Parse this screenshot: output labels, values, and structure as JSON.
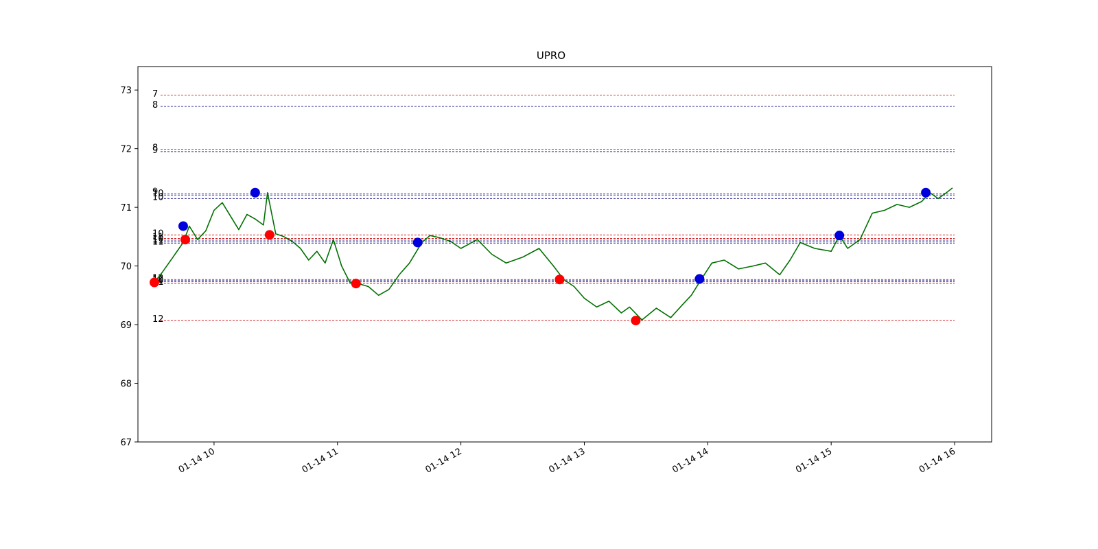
{
  "chart_data": {
    "type": "line",
    "title": "UPRO",
    "xlabel": "",
    "ylabel": "",
    "ylim": [
      67,
      73.4
    ],
    "xlim": [
      "2020-01-14 09:23",
      "2020-01-14 16:18"
    ],
    "grid": false,
    "y_ticks": [
      67,
      68,
      69,
      70,
      71,
      72,
      73
    ],
    "x_ticks": [
      "2020-01-14 10:00",
      "2020-01-14 11:00",
      "2020-01-14 12:00",
      "2020-01-14 13:00",
      "2020-01-14 14:00",
      "2020-01-14 15:00",
      "2020-01-14 16:00"
    ],
    "x_tick_labels": [
      "01-14 10",
      "01-14 11",
      "01-14 12",
      "01-14 13",
      "01-14 14",
      "01-14 15",
      "01-14 16"
    ],
    "series": [
      {
        "color": "#007000",
        "x": [
          "2020-01-14 09:31",
          "2020-01-14 09:35",
          "2020-01-14 09:40",
          "2020-01-14 09:45",
          "2020-01-14 09:48",
          "2020-01-14 09:52",
          "2020-01-14 09:56",
          "2020-01-14 10:00",
          "2020-01-14 10:04",
          "2020-01-14 10:08",
          "2020-01-14 10:12",
          "2020-01-14 10:16",
          "2020-01-14 10:20",
          "2020-01-14 10:24",
          "2020-01-14 10:26",
          "2020-01-14 10:30",
          "2020-01-14 10:34",
          "2020-01-14 10:38",
          "2020-01-14 10:42",
          "2020-01-14 10:46",
          "2020-01-14 10:50",
          "2020-01-14 10:54",
          "2020-01-14 10:58",
          "2020-01-14 11:02",
          "2020-01-14 11:06",
          "2020-01-14 11:10",
          "2020-01-14 11:15",
          "2020-01-14 11:20",
          "2020-01-14 11:25",
          "2020-01-14 11:30",
          "2020-01-14 11:35",
          "2020-01-14 11:41",
          "2020-01-14 11:45",
          "2020-01-14 11:50",
          "2020-01-14 11:55",
          "2020-01-14 12:00",
          "2020-01-14 12:08",
          "2020-01-14 12:15",
          "2020-01-14 12:22",
          "2020-01-14 12:30",
          "2020-01-14 12:38",
          "2020-01-14 12:45",
          "2020-01-14 12:50",
          "2020-01-14 12:55",
          "2020-01-14 13:00",
          "2020-01-14 13:06",
          "2020-01-14 13:12",
          "2020-01-14 13:18",
          "2020-01-14 13:22",
          "2020-01-14 13:28",
          "2020-01-14 13:35",
          "2020-01-14 13:42",
          "2020-01-14 13:48",
          "2020-01-14 13:52",
          "2020-01-14 13:57",
          "2020-01-14 14:02",
          "2020-01-14 14:08",
          "2020-01-14 14:15",
          "2020-01-14 14:22",
          "2020-01-14 14:28",
          "2020-01-14 14:35",
          "2020-01-14 14:40",
          "2020-01-14 14:45",
          "2020-01-14 14:52",
          "2020-01-14 15:00",
          "2020-01-14 15:04",
          "2020-01-14 15:08",
          "2020-01-14 15:14",
          "2020-01-14 15:20",
          "2020-01-14 15:26",
          "2020-01-14 15:32",
          "2020-01-14 15:38",
          "2020-01-14 15:44",
          "2020-01-14 15:48",
          "2020-01-14 15:52",
          "2020-01-14 15:56",
          "2020-01-14 15:59"
        ],
        "values": [
          69.72,
          69.9,
          70.15,
          70.4,
          70.68,
          70.45,
          70.6,
          70.95,
          71.08,
          70.85,
          70.62,
          70.88,
          70.8,
          70.7,
          71.25,
          70.55,
          70.5,
          70.42,
          70.3,
          70.1,
          70.25,
          70.05,
          70.45,
          70.0,
          69.72,
          69.7,
          69.65,
          69.5,
          69.6,
          69.85,
          70.05,
          70.4,
          70.52,
          70.48,
          70.42,
          70.3,
          70.45,
          70.2,
          70.05,
          70.15,
          70.3,
          70.0,
          69.77,
          69.65,
          69.45,
          69.3,
          69.4,
          69.2,
          69.3,
          69.08,
          69.28,
          69.12,
          69.35,
          69.5,
          69.78,
          70.05,
          70.1,
          69.95,
          70.0,
          70.05,
          69.85,
          70.1,
          70.4,
          70.3,
          70.25,
          70.52,
          70.3,
          70.45,
          70.9,
          70.95,
          71.05,
          71.0,
          71.1,
          71.25,
          71.15,
          71.25,
          71.33
        ]
      }
    ],
    "buy_points": [
      {
        "x": "2020-01-14 09:31",
        "y": 69.72
      },
      {
        "x": "2020-01-14 09:46",
        "y": 70.45
      },
      {
        "x": "2020-01-14 10:27",
        "y": 70.53
      },
      {
        "x": "2020-01-14 11:09",
        "y": 69.7
      },
      {
        "x": "2020-01-14 12:48",
        "y": 69.77
      },
      {
        "x": "2020-01-14 13:25",
        "y": 69.07
      }
    ],
    "sell_points": [
      {
        "x": "2020-01-14 09:45",
        "y": 70.68
      },
      {
        "x": "2020-01-14 10:20",
        "y": 71.25
      },
      {
        "x": "2020-01-14 11:39",
        "y": 70.4
      },
      {
        "x": "2020-01-14 13:56",
        "y": 69.78
      },
      {
        "x": "2020-01-14 15:04",
        "y": 70.52
      },
      {
        "x": "2020-01-14 15:46",
        "y": 71.25
      }
    ],
    "buy_color": "#ff0000",
    "sell_color": "#0000dd",
    "levels": [
      {
        "y": 72.91,
        "label": "7",
        "color": "#cc0000"
      },
      {
        "y": 72.72,
        "label": "8",
        "color": "#000080"
      },
      {
        "y": 71.99,
        "label": "8",
        "color": "#cc0000"
      },
      {
        "y": 71.95,
        "label": "9",
        "color": "#000080"
      },
      {
        "y": 71.24,
        "label": "9",
        "color": "#cc0000"
      },
      {
        "y": 71.21,
        "label": "10",
        "color": "#000080"
      },
      {
        "y": 71.15,
        "label": "10",
        "color": "#000080"
      },
      {
        "y": 70.53,
        "label": "10",
        "color": "#cc0000"
      },
      {
        "y": 70.47,
        "label": "11",
        "color": "#cc0000"
      },
      {
        "y": 70.44,
        "label": "10",
        "color": "#000080"
      },
      {
        "y": 70.41,
        "label": "11",
        "color": "#000080"
      },
      {
        "y": 70.39,
        "label": "11",
        "color": "#000080"
      },
      {
        "y": 69.77,
        "label": "12",
        "color": "#cc0000"
      },
      {
        "y": 69.75,
        "label": "11",
        "color": "#000080"
      },
      {
        "y": 69.73,
        "label": "10",
        "color": "#cc0000"
      },
      {
        "y": 69.7,
        "label": "11",
        "color": "#cc0000"
      },
      {
        "y": 69.07,
        "label": "12",
        "color": "#cc0000"
      }
    ],
    "levels_xrange": [
      "2020-01-14 09:34",
      "2020-01-14 16:00"
    ],
    "levels_label_time": "2020-01-14 09:31"
  }
}
